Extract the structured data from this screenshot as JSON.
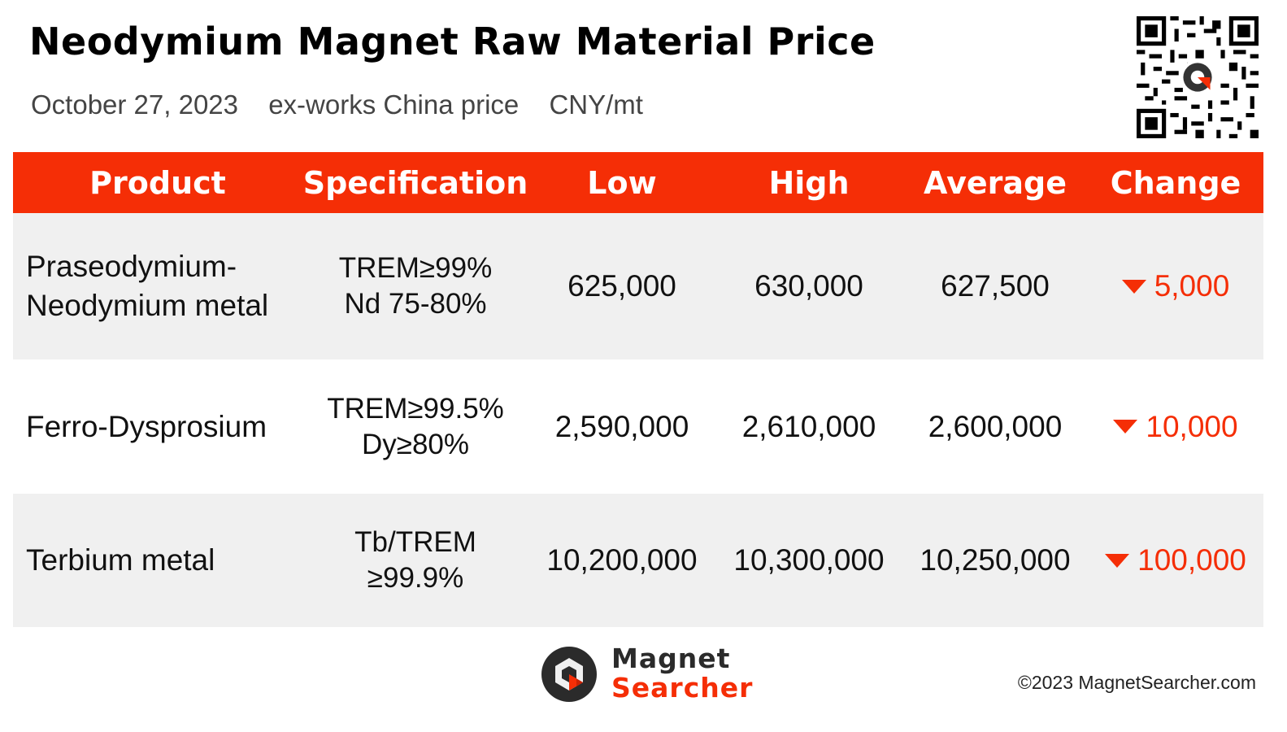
{
  "header": {
    "title": "Neodymium Magnet Raw Material Price",
    "date": "October 27, 2023",
    "price_basis": "ex-works China price",
    "unit": "CNY/mt"
  },
  "table": {
    "columns": [
      "Product",
      "Specification",
      "Low",
      "High",
      "Average",
      "Change"
    ],
    "rows": [
      {
        "product": [
          "Praseodymium-",
          "Neodymium metal"
        ],
        "spec": [
          "TREM≥99%",
          "Nd 75-80%"
        ],
        "low": "625,000",
        "high": "630,000",
        "average": "627,500",
        "change": "5,000",
        "direction": "down"
      },
      {
        "product": [
          "Ferro-Dysprosium"
        ],
        "spec": [
          "TREM≥99.5%",
          "Dy≥80%"
        ],
        "low": "2,590,000",
        "high": "2,610,000",
        "average": "2,600,000",
        "change": "10,000",
        "direction": "down"
      },
      {
        "product": [
          "Terbium metal"
        ],
        "spec": [
          "Tb/TREM",
          "≥99.9%"
        ],
        "low": "10,200,000",
        "high": "10,300,000",
        "average": "10,250,000",
        "change": "100,000",
        "direction": "down"
      }
    ]
  },
  "footer": {
    "brand_line1": "Magnet",
    "brand_line2": "Searcher",
    "copyright": "©2023 MagnetSearcher.com"
  },
  "colors": {
    "accent": "#f52e06",
    "row_shade": "#f0f0f0"
  },
  "icons": [
    "qr-code-icon",
    "down-triangle-icon",
    "magnet-searcher-logo-icon"
  ]
}
